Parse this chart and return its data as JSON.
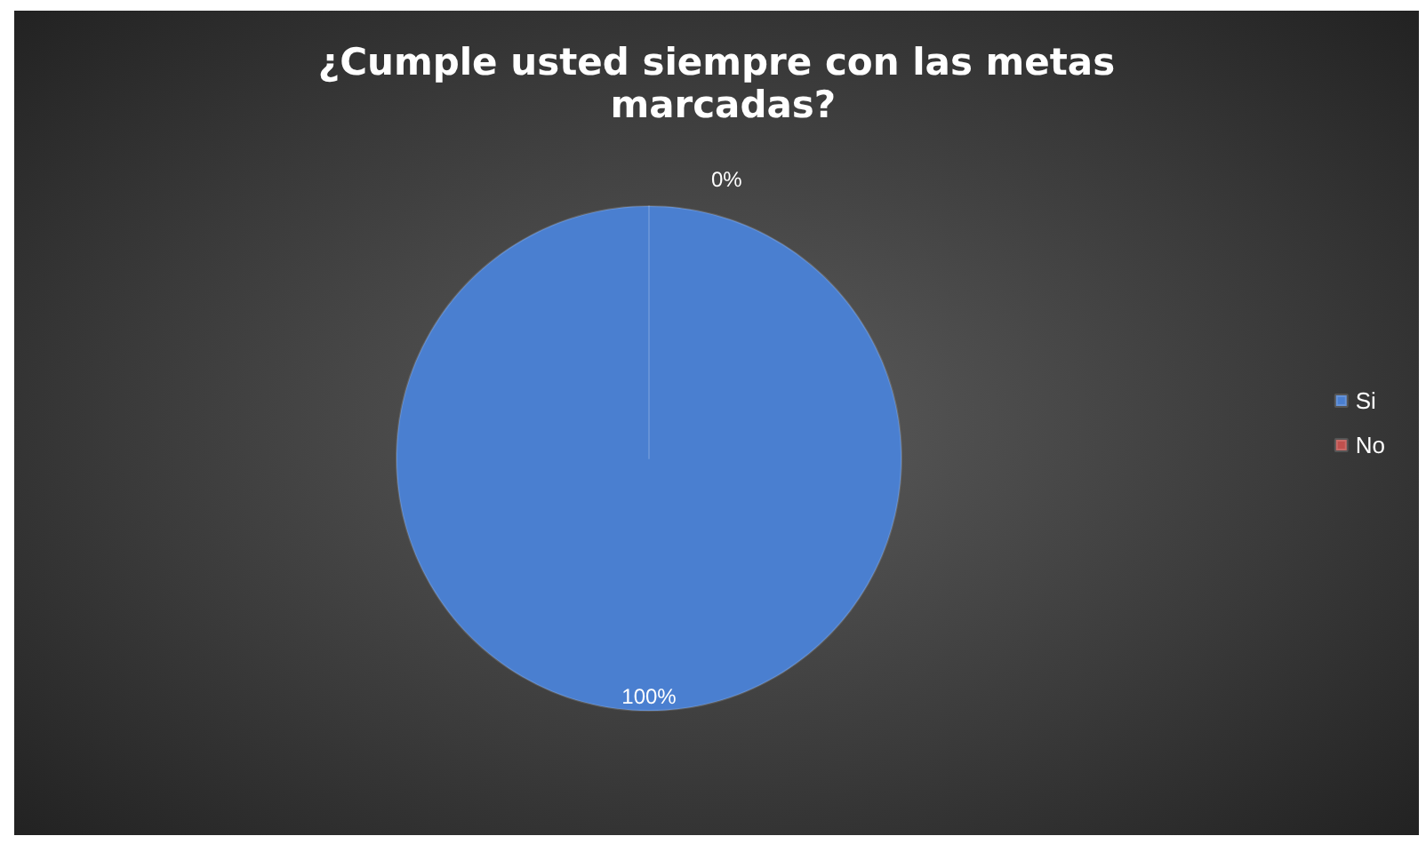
{
  "chart_data": {
    "type": "pie",
    "title": "¿Cumple usted siempre con las metas marcadas?",
    "categories": [
      "Si",
      "No"
    ],
    "values": [
      100,
      0
    ],
    "colors": [
      "#4a7fd0",
      "#c0504d"
    ],
    "value_labels": [
      "100%",
      "0%"
    ],
    "legend": "right"
  }
}
